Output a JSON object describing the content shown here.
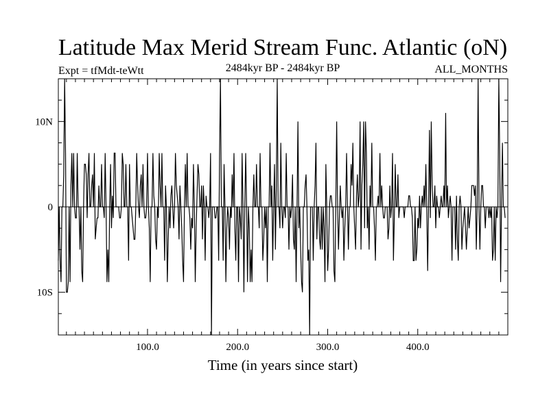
{
  "chart_data": {
    "type": "line",
    "title": "Latitude Max Merid Stream Func. Atlantic (oN)",
    "experiment": "Expt = tfMdt-teWtt",
    "period": "2484kyr BP - 2484kyr BP",
    "season": "ALL_MONTHS",
    "xlabel": "Time (in years since start)",
    "ylabel": "",
    "xlim": [
      1,
      500
    ],
    "ylim": [
      -15,
      15
    ],
    "x_ticks": [
      {
        "value": 100,
        "label": "100.0"
      },
      {
        "value": 200,
        "label": "200.0"
      },
      {
        "value": 300,
        "label": "300.0"
      },
      {
        "value": 400,
        "label": "400.0"
      }
    ],
    "y_ticks": [
      {
        "value": 10,
        "label": "10N"
      },
      {
        "value": 0,
        "label": "0"
      },
      {
        "value": -10,
        "label": "10S"
      }
    ],
    "x_start": 1,
    "x_step": 1,
    "series": [
      {
        "color": "#000000",
        "values": [
          -6.3,
          0,
          -6.3,
          -8.8,
          0,
          0,
          3.8,
          15,
          6.3,
          -10,
          -10,
          -8.8,
          0,
          -8.8,
          2.5,
          6.3,
          0,
          6.3,
          0,
          -1.3,
          -1.3,
          6.3,
          0,
          0,
          -5,
          0,
          -7.5,
          -8.8,
          0,
          5,
          5,
          3.8,
          -1.3,
          3.8,
          6.3,
          0,
          0,
          2.5,
          3.8,
          0,
          6.3,
          -3.8,
          -2.5,
          -1.3,
          -1.3,
          2.5,
          0,
          0,
          5,
          0,
          0,
          -1.3,
          6.3,
          0,
          -8.8,
          -5,
          -8.8,
          0,
          5,
          -2.5,
          1.3,
          -1.3,
          6.3,
          6.3,
          0,
          0,
          0,
          0,
          -1.3,
          -1.3,
          0,
          6.3,
          5,
          0,
          0,
          5,
          0,
          0,
          -6.3,
          5,
          0,
          0,
          -1.3,
          -2.5,
          -3.8,
          -3.8,
          0,
          6.3,
          2.5,
          0,
          -1.3,
          2.5,
          3.8,
          0,
          5,
          0,
          -1.3,
          -1.3,
          0,
          6.3,
          0,
          -2.5,
          -8.8,
          0,
          0,
          6.3,
          1.3,
          0,
          -3.8,
          -5,
          0,
          -1.3,
          6.3,
          2.5,
          0,
          6.3,
          0,
          0,
          -6.3,
          2.5,
          0,
          -8.8,
          -3.8,
          0,
          -2.5,
          1.3,
          2.5,
          0,
          -2.5,
          0,
          6.3,
          2.5,
          1.3,
          0,
          -3.8,
          2.5,
          0,
          -2.5,
          -6.3,
          -8.8,
          0,
          5,
          0,
          6.3,
          0,
          0,
          -1.3,
          -5,
          -1.3,
          -2.5,
          5,
          0,
          -8.8,
          -2.5,
          1.3,
          5,
          3.8,
          0,
          0,
          2.5,
          -3.8,
          2.5,
          0,
          -6.3,
          1.3,
          0,
          0,
          -1.3,
          0,
          6.3,
          -15,
          0,
          0,
          0,
          -1.3,
          -1.3,
          0,
          0,
          -6.3,
          6.3,
          15,
          0,
          0,
          -6.3,
          5,
          0,
          -8.8,
          -2.5,
          0,
          -1.3,
          -5,
          0,
          -1.3,
          3.8,
          0,
          6.3,
          -2.5,
          -6.3,
          0,
          0,
          -8.8,
          0,
          -1.3,
          -3.8,
          6.3,
          0,
          -10,
          0,
          6.3,
          0,
          -8.8,
          0,
          -2.5,
          -8.8,
          -5,
          -8.8,
          0,
          3.8,
          0,
          0,
          5,
          0,
          0,
          -2.5,
          6.3,
          0,
          0,
          -6.3,
          -3.8,
          0,
          -2.5,
          0,
          -8.8,
          0,
          0,
          7.5,
          0,
          2.5,
          -6.3,
          0,
          5,
          -5,
          2.5,
          15,
          0,
          0,
          -2.5,
          7.5,
          0,
          -2.5,
          0,
          0,
          -1.3,
          6.3,
          0,
          0,
          -5,
          0,
          -1.3,
          0,
          3.8,
          -3.8,
          -5,
          0,
          -8.8,
          0,
          10,
          -2.5,
          0,
          -5,
          -8.8,
          -10,
          0,
          0,
          2.5,
          3.8,
          0,
          -6.3,
          -5,
          -15,
          0,
          0,
          0,
          -6.3,
          0,
          2.5,
          7.5,
          -3.8,
          0,
          0,
          -3.8,
          -5,
          0,
          -5,
          0,
          -2.5,
          -8.8,
          5,
          0,
          -7.5,
          -5,
          0,
          1.3,
          1.3,
          0,
          0,
          -7.5,
          -8.8,
          0,
          10,
          0,
          -5,
          -1.3,
          2.5,
          0,
          -1.3,
          0,
          -6.3,
          -2.5,
          0,
          6.3,
          0,
          -5,
          0,
          0,
          5,
          2.5,
          7.5,
          0,
          -2.5,
          -5,
          1.3,
          3.8,
          0,
          1.3,
          10,
          -5,
          2.5,
          5,
          10,
          -2.5,
          10,
          6.3,
          -2.5,
          0,
          -5,
          2.5,
          0,
          7.5,
          0,
          0,
          -2.5,
          -6.3,
          0,
          0,
          1.3,
          0,
          6.3,
          0,
          2.5,
          0,
          -1.3,
          -1.3,
          0,
          0,
          0,
          -3.8,
          -2.5,
          2.5,
          -1.3,
          0,
          6.3,
          -6.3,
          -1.3,
          5,
          0,
          0,
          3.8,
          -1.3,
          0,
          0,
          0,
          0,
          0,
          -1.3,
          0,
          0,
          0,
          0,
          1.3,
          1.3,
          0,
          0,
          -1.3,
          -6.3,
          -6.3,
          0,
          -6.3,
          -5,
          -1.3,
          -2.5,
          1.3,
          -2.5,
          0,
          1.3,
          0,
          2.5,
          0,
          5,
          0,
          -7.5,
          0,
          9,
          -1.3,
          10,
          2.5,
          0,
          0,
          2.5,
          -2.5,
          1.3,
          0,
          0,
          -1.3,
          0,
          1.3,
          0,
          0,
          2.5,
          0,
          11,
          0,
          2.5,
          -1.3,
          0,
          1.3,
          0,
          -6.3,
          0,
          0,
          0,
          -5,
          1.3,
          -3.8,
          -6.3,
          0,
          1.3,
          0,
          -5,
          -2.5,
          -1.3,
          0,
          -2.5,
          -5,
          -2.5,
          0,
          -2.5,
          -1.3,
          0,
          2.5,
          2.5,
          2.5,
          1.3,
          2.5,
          -5,
          0,
          15,
          0,
          -5,
          0,
          2.5,
          2.5,
          0,
          0,
          -2.5,
          0,
          0,
          0,
          -1.3,
          0,
          -1.3,
          0,
          -6.3,
          -5,
          0,
          -6.3,
          0,
          -1.3,
          0,
          15,
          6.3,
          -8.8,
          0,
          7.5,
          0,
          0,
          -1.3
        ]
      }
    ]
  }
}
